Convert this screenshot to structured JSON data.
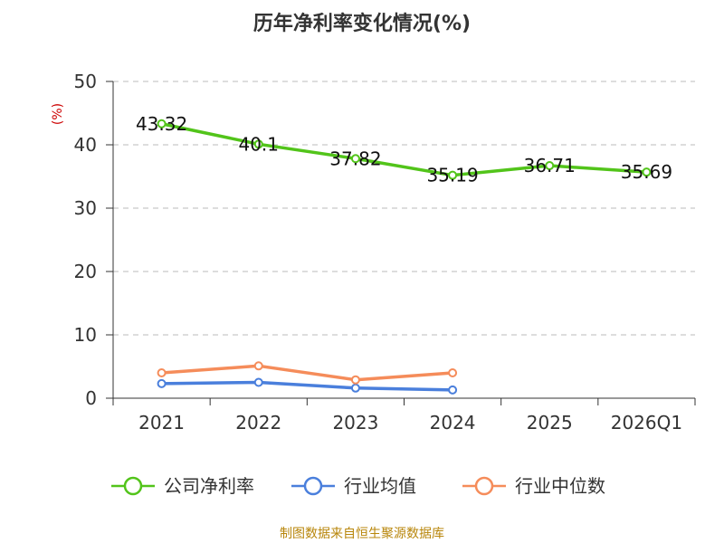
{
  "chart_data": {
    "type": "line",
    "title": "历年净利率变化情况(%)",
    "ylabel": "(%)",
    "categories": [
      "2021",
      "2022",
      "2023",
      "2024",
      "2025",
      "2026Q1"
    ],
    "ylim": [
      0,
      50
    ],
    "yticks": [
      0,
      10,
      20,
      30,
      40,
      50
    ],
    "grid": true,
    "legend_position": "bottom",
    "series": [
      {
        "name": "公司净利率",
        "color": "#52c41a",
        "values": [
          43.32,
          40.1,
          37.82,
          35.19,
          36.71,
          35.69
        ],
        "labels": [
          "43.32",
          "40.1",
          "37.82",
          "35.19",
          "36.71",
          "35.69"
        ]
      },
      {
        "name": "行业均值",
        "color": "#4a7fdc",
        "values": [
          2.3,
          2.5,
          1.6,
          1.3,
          null,
          null
        ]
      },
      {
        "name": "行业中位数",
        "color": "#f58c5a",
        "values": [
          4.0,
          5.1,
          2.9,
          4.0,
          null,
          null
        ]
      }
    ]
  },
  "source": "制图数据来自恒生聚源数据库"
}
